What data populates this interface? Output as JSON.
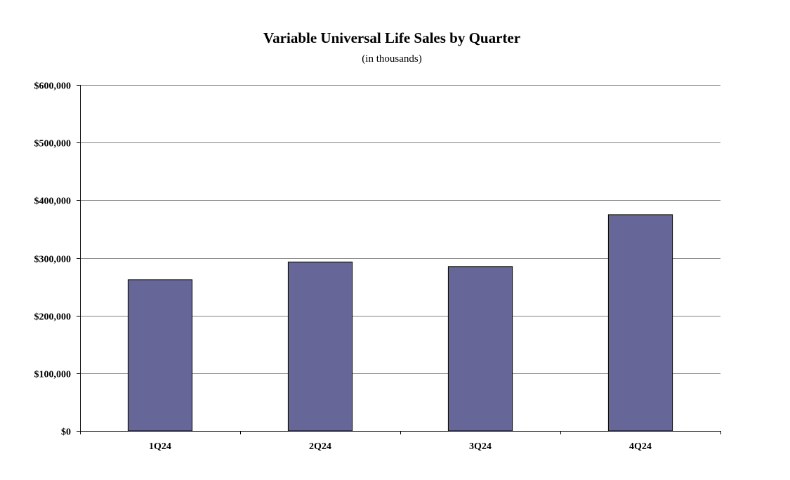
{
  "chart_data": {
    "type": "bar",
    "title": "Variable Universal Life Sales by Quarter",
    "subtitle": "(in thousands)",
    "xlabel": "",
    "ylabel": "",
    "categories": [
      "1Q24",
      "2Q24",
      "3Q24",
      "4Q24"
    ],
    "values": [
      262000,
      293000,
      285000,
      375000
    ],
    "ylim": [
      0,
      600000
    ],
    "yticks": [
      0,
      100000,
      200000,
      300000,
      400000,
      500000,
      600000
    ],
    "ytick_labels": [
      "$0",
      "$100,000",
      "$200,000",
      "$300,000",
      "$400,000",
      "$500,000",
      "$600,000"
    ],
    "grid": "horizontal",
    "legend": "none",
    "bar_color": "#666699",
    "bar_border_color": "#000000",
    "grid_color": "#808080"
  }
}
